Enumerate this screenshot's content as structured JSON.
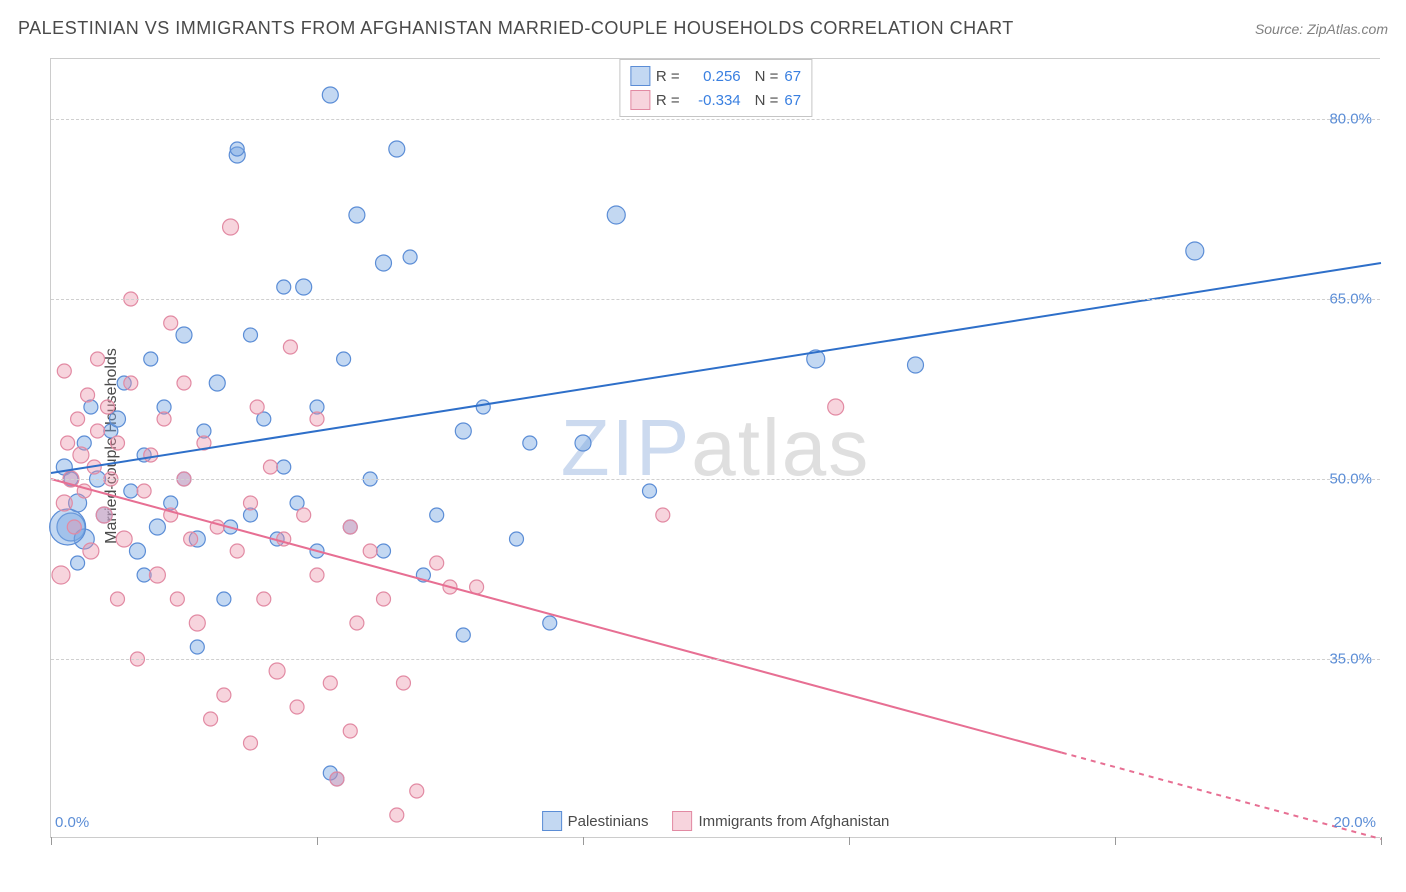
{
  "header": {
    "title": "PALESTINIAN VS IMMIGRANTS FROM AFGHANISTAN MARRIED-COUPLE HOUSEHOLDS CORRELATION CHART",
    "source": "Source: ZipAtlas.com"
  },
  "chart": {
    "type": "scatter",
    "y_axis_label": "Married-couple Households",
    "watermark": {
      "part1": "ZIP",
      "part2": "atlas"
    },
    "background_color": "#ffffff",
    "grid_color": "#d0d0d0",
    "axis_color": "#cccccc",
    "tick_label_color": "#5b8dd6",
    "xlim": [
      0,
      20
    ],
    "ylim": [
      20,
      85
    ],
    "x_ticks": [
      0,
      4,
      8,
      12,
      16,
      20
    ],
    "x_tick_labels": {
      "0": "0.0%",
      "20": "20.0%"
    },
    "y_ticks": [
      35,
      50,
      65,
      80
    ],
    "y_tick_labels": {
      "35": "35.0%",
      "50": "50.0%",
      "65": "65.0%",
      "80": "80.0%"
    },
    "series": [
      {
        "name": "Palestinians",
        "marker_fill": "rgba(123,169,226,0.45)",
        "marker_stroke": "#5b8dd6",
        "line_color": "#2e6fc9",
        "line_width": 2,
        "R": "0.256",
        "N": "67",
        "trend": {
          "x1": 0,
          "y1": 50.5,
          "x2": 20,
          "y2": 68,
          "dashed_from_x": null
        },
        "points": [
          {
            "x": 0.2,
            "y": 51,
            "r": 8
          },
          {
            "x": 0.3,
            "y": 46,
            "r": 14
          },
          {
            "x": 0.3,
            "y": 50,
            "r": 7
          },
          {
            "x": 0.4,
            "y": 48,
            "r": 9
          },
          {
            "x": 0.5,
            "y": 53,
            "r": 7
          },
          {
            "x": 0.5,
            "y": 45,
            "r": 10
          },
          {
            "x": 0.6,
            "y": 56,
            "r": 7
          },
          {
            "x": 0.7,
            "y": 50,
            "r": 8
          },
          {
            "x": 0.8,
            "y": 47,
            "r": 8
          },
          {
            "x": 0.9,
            "y": 54,
            "r": 7
          },
          {
            "x": 1.0,
            "y": 55,
            "r": 8
          },
          {
            "x": 1.1,
            "y": 58,
            "r": 7
          },
          {
            "x": 1.2,
            "y": 49,
            "r": 7
          },
          {
            "x": 1.3,
            "y": 44,
            "r": 8
          },
          {
            "x": 1.4,
            "y": 52,
            "r": 7
          },
          {
            "x": 1.5,
            "y": 60,
            "r": 7
          },
          {
            "x": 1.6,
            "y": 46,
            "r": 8
          },
          {
            "x": 1.7,
            "y": 56,
            "r": 7
          },
          {
            "x": 1.8,
            "y": 48,
            "r": 7
          },
          {
            "x": 2.0,
            "y": 62,
            "r": 8
          },
          {
            "x": 2.0,
            "y": 50,
            "r": 7
          },
          {
            "x": 2.2,
            "y": 45,
            "r": 8
          },
          {
            "x": 2.2,
            "y": 36,
            "r": 7
          },
          {
            "x": 2.3,
            "y": 54,
            "r": 7
          },
          {
            "x": 2.5,
            "y": 58,
            "r": 8
          },
          {
            "x": 2.7,
            "y": 46,
            "r": 7
          },
          {
            "x": 2.8,
            "y": 77,
            "r": 8
          },
          {
            "x": 2.8,
            "y": 77.5,
            "r": 7
          },
          {
            "x": 3.0,
            "y": 62,
            "r": 7
          },
          {
            "x": 3.0,
            "y": 47,
            "r": 7
          },
          {
            "x": 3.2,
            "y": 55,
            "r": 7
          },
          {
            "x": 3.4,
            "y": 45,
            "r": 7
          },
          {
            "x": 3.5,
            "y": 51,
            "r": 7
          },
          {
            "x": 3.7,
            "y": 48,
            "r": 7
          },
          {
            "x": 3.8,
            "y": 66,
            "r": 8
          },
          {
            "x": 4.0,
            "y": 44,
            "r": 7
          },
          {
            "x": 4.0,
            "y": 56,
            "r": 7
          },
          {
            "x": 4.2,
            "y": 82,
            "r": 8
          },
          {
            "x": 4.3,
            "y": 25,
            "r": 7
          },
          {
            "x": 4.4,
            "y": 60,
            "r": 7
          },
          {
            "x": 4.5,
            "y": 46,
            "r": 7
          },
          {
            "x": 4.6,
            "y": 72,
            "r": 8
          },
          {
            "x": 4.8,
            "y": 50,
            "r": 7
          },
          {
            "x": 5.0,
            "y": 68,
            "r": 8
          },
          {
            "x": 5.0,
            "y": 44,
            "r": 7
          },
          {
            "x": 5.2,
            "y": 77.5,
            "r": 8
          },
          {
            "x": 5.4,
            "y": 68.5,
            "r": 7
          },
          {
            "x": 5.6,
            "y": 42,
            "r": 7
          },
          {
            "x": 5.8,
            "y": 47,
            "r": 7
          },
          {
            "x": 6.2,
            "y": 54,
            "r": 8
          },
          {
            "x": 6.2,
            "y": 37,
            "r": 7
          },
          {
            "x": 6.5,
            "y": 56,
            "r": 7
          },
          {
            "x": 7.0,
            "y": 45,
            "r": 7
          },
          {
            "x": 7.2,
            "y": 53,
            "r": 7
          },
          {
            "x": 7.5,
            "y": 38,
            "r": 7
          },
          {
            "x": 8.0,
            "y": 53,
            "r": 8
          },
          {
            "x": 8.5,
            "y": 72,
            "r": 9
          },
          {
            "x": 9.0,
            "y": 49,
            "r": 7
          },
          {
            "x": 11.5,
            "y": 60,
            "r": 9
          },
          {
            "x": 13.0,
            "y": 59.5,
            "r": 8
          },
          {
            "x": 17.2,
            "y": 69,
            "r": 9
          },
          {
            "x": 0.4,
            "y": 43,
            "r": 7
          },
          {
            "x": 4.2,
            "y": 25.5,
            "r": 7
          },
          {
            "x": 0.25,
            "y": 46,
            "r": 18
          },
          {
            "x": 3.5,
            "y": 66,
            "r": 7
          },
          {
            "x": 2.6,
            "y": 40,
            "r": 7
          },
          {
            "x": 1.4,
            "y": 42,
            "r": 7
          }
        ]
      },
      {
        "name": "Immigrants from Afghanistan",
        "marker_fill": "rgba(236,148,169,0.4)",
        "marker_stroke": "#e28aa3",
        "line_color": "#e76f93",
        "line_width": 2,
        "R": "-0.334",
        "N": "67",
        "trend": {
          "x1": 0,
          "y1": 50,
          "x2": 20,
          "y2": 20,
          "dashed_from_x": 15.2
        },
        "points": [
          {
            "x": 0.15,
            "y": 42,
            "r": 9
          },
          {
            "x": 0.2,
            "y": 48,
            "r": 8
          },
          {
            "x": 0.25,
            "y": 53,
            "r": 7
          },
          {
            "x": 0.3,
            "y": 50,
            "r": 8
          },
          {
            "x": 0.35,
            "y": 46,
            "r": 7
          },
          {
            "x": 0.4,
            "y": 55,
            "r": 7
          },
          {
            "x": 0.45,
            "y": 52,
            "r": 8
          },
          {
            "x": 0.5,
            "y": 49,
            "r": 7
          },
          {
            "x": 0.55,
            "y": 57,
            "r": 7
          },
          {
            "x": 0.6,
            "y": 44,
            "r": 8
          },
          {
            "x": 0.65,
            "y": 51,
            "r": 7
          },
          {
            "x": 0.7,
            "y": 54,
            "r": 7
          },
          {
            "x": 0.8,
            "y": 47,
            "r": 8
          },
          {
            "x": 0.85,
            "y": 56,
            "r": 7
          },
          {
            "x": 0.9,
            "y": 50,
            "r": 7
          },
          {
            "x": 1.0,
            "y": 53,
            "r": 7
          },
          {
            "x": 1.1,
            "y": 45,
            "r": 8
          },
          {
            "x": 1.2,
            "y": 65,
            "r": 7
          },
          {
            "x": 1.2,
            "y": 58,
            "r": 7
          },
          {
            "x": 1.3,
            "y": 35,
            "r": 7
          },
          {
            "x": 1.4,
            "y": 49,
            "r": 7
          },
          {
            "x": 1.5,
            "y": 52,
            "r": 7
          },
          {
            "x": 1.6,
            "y": 42,
            "r": 8
          },
          {
            "x": 1.7,
            "y": 55,
            "r": 7
          },
          {
            "x": 1.8,
            "y": 47,
            "r": 7
          },
          {
            "x": 1.9,
            "y": 40,
            "r": 7
          },
          {
            "x": 2.0,
            "y": 50,
            "r": 7
          },
          {
            "x": 2.1,
            "y": 45,
            "r": 7
          },
          {
            "x": 2.2,
            "y": 38,
            "r": 8
          },
          {
            "x": 2.3,
            "y": 53,
            "r": 7
          },
          {
            "x": 2.4,
            "y": 30,
            "r": 7
          },
          {
            "x": 2.5,
            "y": 46,
            "r": 7
          },
          {
            "x": 2.6,
            "y": 32,
            "r": 7
          },
          {
            "x": 2.7,
            "y": 71,
            "r": 8
          },
          {
            "x": 2.8,
            "y": 44,
            "r": 7
          },
          {
            "x": 3.0,
            "y": 48,
            "r": 7
          },
          {
            "x": 3.0,
            "y": 28,
            "r": 7
          },
          {
            "x": 3.2,
            "y": 40,
            "r": 7
          },
          {
            "x": 3.3,
            "y": 51,
            "r": 7
          },
          {
            "x": 3.4,
            "y": 34,
            "r": 8
          },
          {
            "x": 3.5,
            "y": 45,
            "r": 7
          },
          {
            "x": 3.6,
            "y": 61,
            "r": 7
          },
          {
            "x": 3.7,
            "y": 31,
            "r": 7
          },
          {
            "x": 3.8,
            "y": 47,
            "r": 7
          },
          {
            "x": 4.0,
            "y": 42,
            "r": 7
          },
          {
            "x": 4.0,
            "y": 55,
            "r": 7
          },
          {
            "x": 4.2,
            "y": 33,
            "r": 7
          },
          {
            "x": 4.3,
            "y": 25,
            "r": 7
          },
          {
            "x": 4.5,
            "y": 46,
            "r": 7
          },
          {
            "x": 4.6,
            "y": 38,
            "r": 7
          },
          {
            "x": 4.8,
            "y": 44,
            "r": 7
          },
          {
            "x": 5.0,
            "y": 40,
            "r": 7
          },
          {
            "x": 5.2,
            "y": 22,
            "r": 7
          },
          {
            "x": 5.3,
            "y": 33,
            "r": 7
          },
          {
            "x": 5.5,
            "y": 24,
            "r": 7
          },
          {
            "x": 5.8,
            "y": 43,
            "r": 7
          },
          {
            "x": 6.0,
            "y": 41,
            "r": 7
          },
          {
            "x": 6.4,
            "y": 41,
            "r": 7
          },
          {
            "x": 9.2,
            "y": 47,
            "r": 7
          },
          {
            "x": 11.8,
            "y": 56,
            "r": 8
          },
          {
            "x": 0.2,
            "y": 59,
            "r": 7
          },
          {
            "x": 0.7,
            "y": 60,
            "r": 7
          },
          {
            "x": 1.0,
            "y": 40,
            "r": 7
          },
          {
            "x": 1.8,
            "y": 63,
            "r": 7
          },
          {
            "x": 2.0,
            "y": 58,
            "r": 7
          },
          {
            "x": 4.5,
            "y": 29,
            "r": 7
          },
          {
            "x": 3.1,
            "y": 56,
            "r": 7
          }
        ]
      }
    ],
    "legend_top": {
      "R_label": "R =",
      "N_label": "N ="
    },
    "legend_bottom": [
      {
        "label": "Palestinians",
        "fill": "rgba(123,169,226,0.45)",
        "stroke": "#5b8dd6"
      },
      {
        "label": "Immigrants from Afghanistan",
        "fill": "rgba(236,148,169,0.4)",
        "stroke": "#e28aa3"
      }
    ]
  }
}
